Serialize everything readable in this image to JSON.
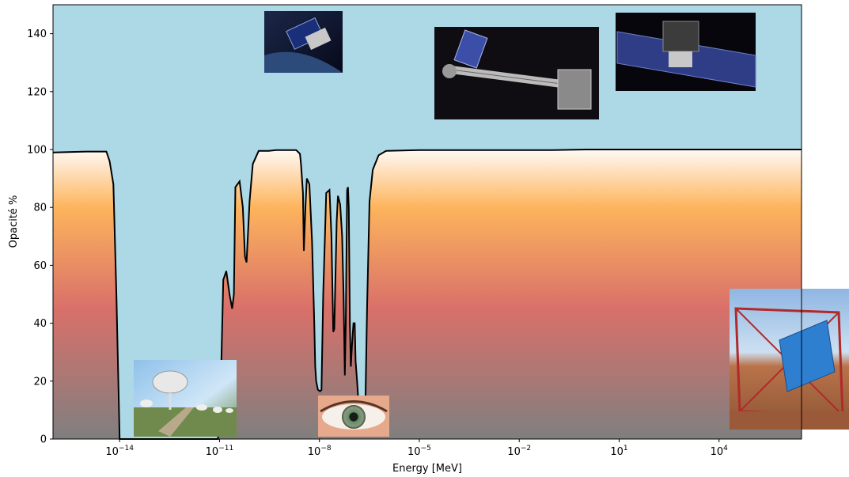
{
  "chart_data": {
    "type": "area",
    "xscale": "log",
    "xlabel": "Energy [MeV]",
    "ylabel": "Opacité %",
    "xlim": [
      1e-16,
      3000000.0
    ],
    "ylim": [
      0,
      150
    ],
    "grid": false,
    "x_ticks": [
      {
        "base": "10",
        "exp": "−14"
      },
      {
        "base": "10",
        "exp": "−11"
      },
      {
        "base": "10",
        "exp": "−8"
      },
      {
        "base": "10",
        "exp": "−5"
      },
      {
        "base": "10",
        "exp": "−2"
      },
      {
        "base": "10",
        "exp": "1"
      },
      {
        "base": "10",
        "exp": "4"
      }
    ],
    "y_ticks": [
      "0",
      "20",
      "40",
      "60",
      "80",
      "100",
      "120",
      "140"
    ],
    "colors": {
      "sky": "#add8e6",
      "gradient_top": "#fffaf5",
      "gradient_orange": "#fdb45c",
      "gradient_red": "#d9706a",
      "gradient_bottom": "#7f7f7f",
      "curve": "#000000"
    },
    "series": [
      {
        "x": [
          1e-16,
          1e-15,
          3e-15,
          4e-15,
          5e-15,
          6.5e-15,
          8e-15,
          1e-14,
          1e-13,
          1e-12,
          9e-12,
          1.1e-11,
          1.3e-11,
          1.6e-11,
          2e-11,
          2.4e-11,
          2.7e-11,
          3e-11,
          4e-11,
          5e-11,
          5.8e-11,
          6.5e-11,
          8e-11,
          1e-10,
          1.5e-10,
          3e-10,
          5e-10,
          8e-10,
          1e-09,
          1.5e-09,
          2e-09,
          2.6e-09,
          2.8e-09,
          3.2e-09,
          3.4e-09,
          3.8e-09,
          4.2e-09,
          5e-09,
          6e-09,
          7e-09,
          7.5e-09,
          8e-09,
          9e-09,
          1.05e-08,
          1.15e-08,
          1.3e-08,
          1.6e-08,
          2e-08,
          2.3e-08,
          2.6e-08,
          2.8e-08,
          3.3e-08,
          3.6e-08,
          4.2e-08,
          4.8e-08,
          5.3e-08,
          5.8e-08,
          6.2e-08,
          6.8e-08,
          7.2e-08,
          7.6e-08,
          8.2e-08,
          8.8e-08,
          9.6e-08,
          1.05e-07,
          1.15e-07,
          1.22e-07,
          1.35e-07,
          1.5e-07,
          1.7e-07,
          1.85e-07,
          2e-07,
          2.2e-07,
          2.4e-07,
          2.7e-07,
          3.2e-07,
          4e-07,
          6e-07,
          1e-06,
          1e-05,
          0.001,
          0.1,
          1,
          10,
          100,
          1000.0,
          10000.0,
          3000000.0
        ],
        "y": [
          99,
          99.3,
          99.3,
          99.3,
          96,
          88,
          50,
          0,
          0,
          0,
          0,
          20,
          55,
          58,
          50,
          45,
          50,
          87,
          89,
          80,
          63,
          61,
          82,
          95,
          99.5,
          99.5,
          99.8,
          99.8,
          99.8,
          99.8,
          99.8,
          98.5,
          95,
          85,
          65,
          80,
          90,
          88,
          68,
          40,
          25,
          20,
          17,
          16.5,
          17,
          50,
          85,
          86,
          70,
          37,
          38,
          75,
          84,
          81,
          70,
          50,
          22,
          40,
          86,
          87,
          80,
          40,
          25,
          33,
          40,
          40,
          27,
          20,
          12,
          9,
          8,
          8,
          8.5,
          12,
          45,
          82,
          93,
          98,
          99.5,
          99.8,
          99.8,
          99.8,
          100,
          100,
          100,
          100,
          100,
          100
        ]
      }
    ]
  },
  "images": [
    {
      "name": "radio-array-photo",
      "caption": "radio telescope array"
    },
    {
      "name": "infrared-space-telescope-photo",
      "caption": "infrared space telescope"
    },
    {
      "name": "eye-photo",
      "caption": "human eye"
    },
    {
      "name": "xray-space-telescope-photo",
      "caption": "x-ray space telescope"
    },
    {
      "name": "gamma-ray-satellite-photo",
      "caption": "gamma-ray satellite"
    },
    {
      "name": "cherenkov-telescope-photo",
      "caption": "ground cherenkov telescope"
    }
  ]
}
